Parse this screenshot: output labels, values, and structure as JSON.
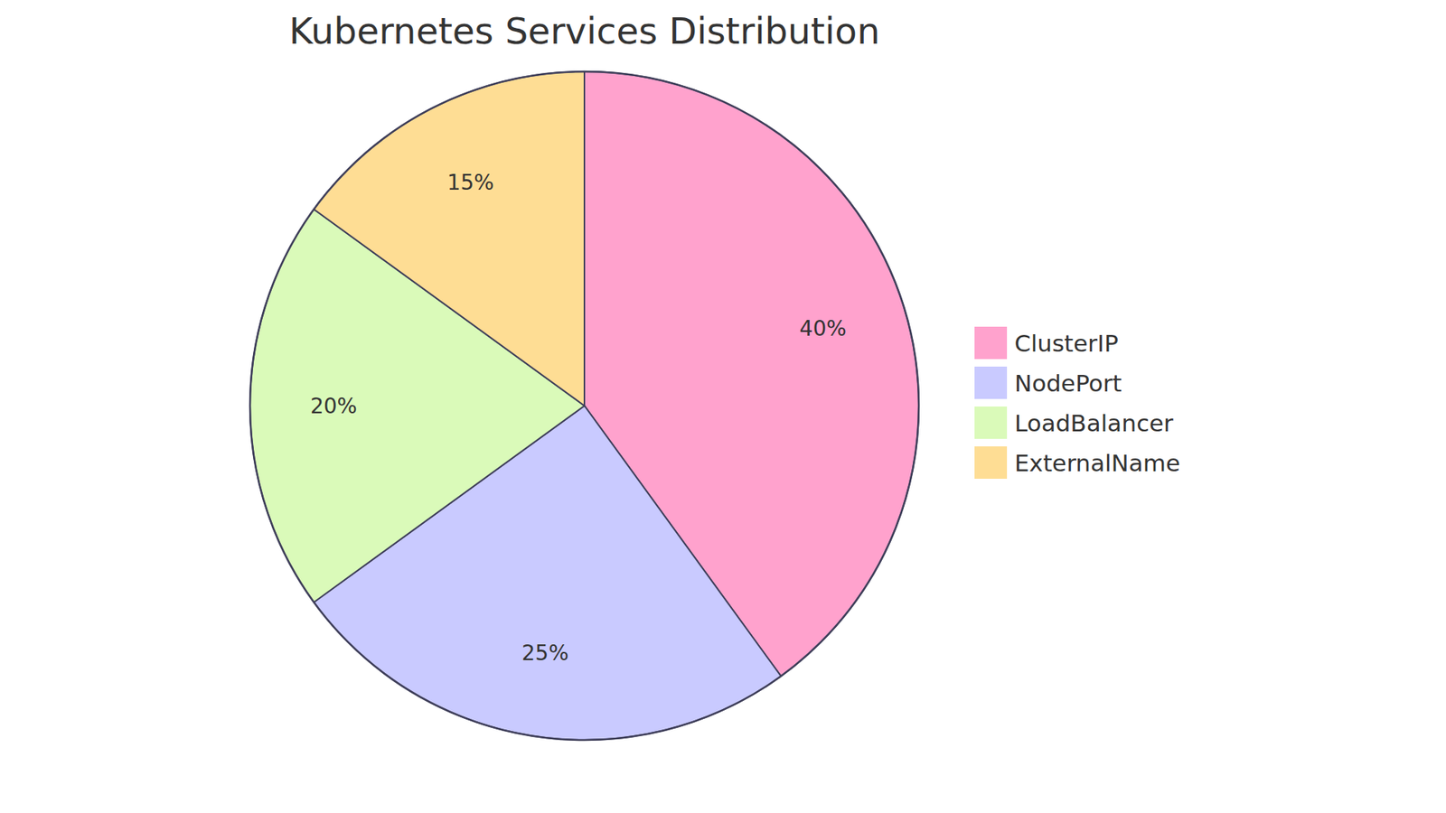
{
  "chart_data": {
    "type": "pie",
    "title": "Kubernetes Services Distribution",
    "categories": [
      "ClusterIP",
      "NodePort",
      "LoadBalancer",
      "ExternalName"
    ],
    "values": [
      40,
      25,
      20,
      15
    ],
    "value_labels": [
      "40%",
      "25%",
      "20%",
      "15%"
    ],
    "colors": [
      "#ffa2cd",
      "#c9caff",
      "#dafab9",
      "#fedd94"
    ],
    "data_labels": true,
    "legend": "right"
  }
}
